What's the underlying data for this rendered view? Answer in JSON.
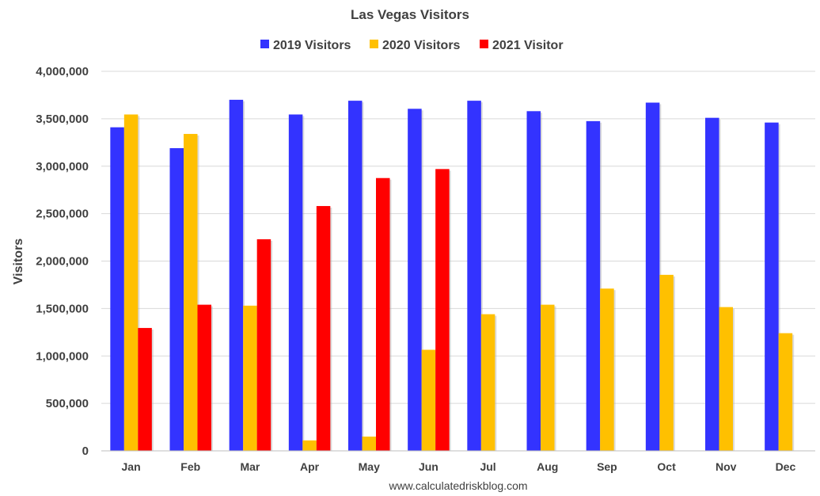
{
  "chart_data": {
    "type": "bar",
    "title": "Las Vegas Visitors",
    "ylabel": "Visitors",
    "xlabel": "",
    "categories": [
      "Jan",
      "Feb",
      "Mar",
      "Apr",
      "May",
      "Jun",
      "Jul",
      "Aug",
      "Sep",
      "Oct",
      "Nov",
      "Dec"
    ],
    "series": [
      {
        "name": "2019 Visitors",
        "color": "#3333ff",
        "values": [
          3410000,
          3190000,
          3700000,
          3545000,
          3690000,
          3605000,
          3690000,
          3580000,
          3475000,
          3670000,
          3510000,
          3460000
        ]
      },
      {
        "name": "2020 Visitors",
        "color": "#ffc000",
        "values": [
          3545000,
          3340000,
          1530000,
          110000,
          150000,
          1065000,
          1440000,
          1540000,
          1710000,
          1855000,
          1515000,
          1240000
        ]
      },
      {
        "name": "2021 Visitor",
        "color": "#ff0000",
        "values": [
          1295000,
          1540000,
          2230000,
          2580000,
          2875000,
          2970000,
          null,
          null,
          null,
          null,
          null,
          null
        ]
      }
    ],
    "ylim": [
      0,
      4000000
    ],
    "yticks": [
      0,
      500000,
      1000000,
      1500000,
      2000000,
      2500000,
      3000000,
      3500000,
      4000000
    ],
    "ytick_labels": [
      "0",
      "500,000",
      "1,000,000",
      "1,500,000",
      "2,000,000",
      "2,500,000",
      "3,000,000",
      "3,500,000",
      "4,000,000"
    ],
    "grid": true,
    "legend_position": "top-center",
    "source": "www.calculatedriskblog.com"
  }
}
